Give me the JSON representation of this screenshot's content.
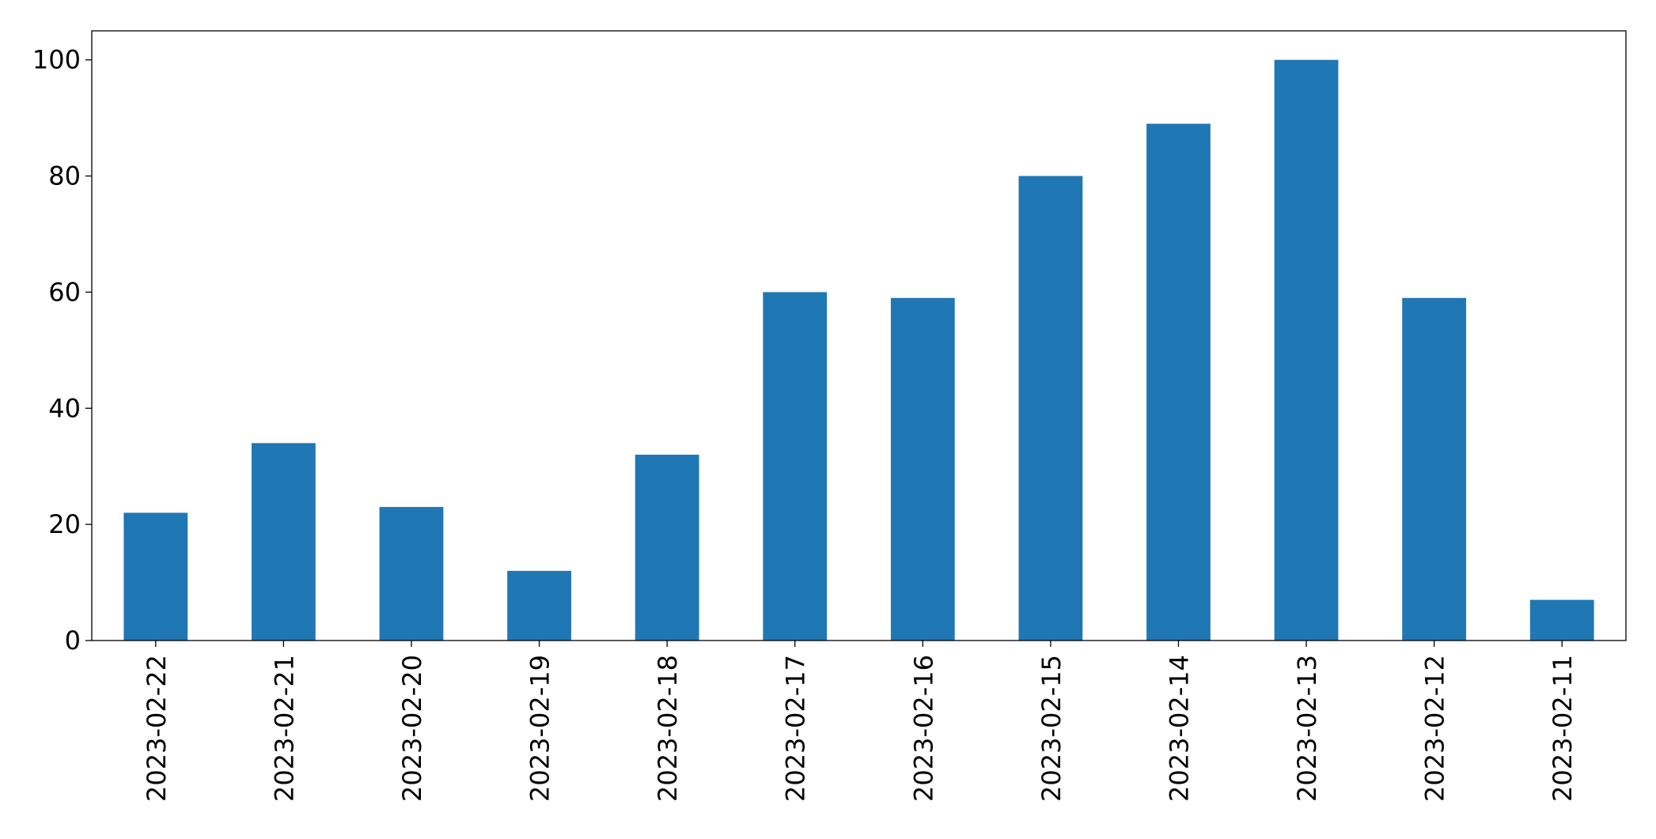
{
  "chart_data": {
    "type": "bar",
    "title": "",
    "xlabel": "",
    "ylabel": "",
    "categories": [
      "2023-02-22",
      "2023-02-21",
      "2023-02-20",
      "2023-02-19",
      "2023-02-18",
      "2023-02-17",
      "2023-02-16",
      "2023-02-15",
      "2023-02-14",
      "2023-02-13",
      "2023-02-12",
      "2023-02-11"
    ],
    "values": [
      22,
      34,
      23,
      12,
      32,
      60,
      59,
      80,
      89,
      100,
      59,
      7
    ],
    "ylim": [
      0,
      105
    ],
    "yticks": [
      0,
      20,
      40,
      60,
      80,
      100
    ],
    "grid": false,
    "legend": "none",
    "bar_color": "#1f77b4",
    "axis_color": "#000000"
  }
}
